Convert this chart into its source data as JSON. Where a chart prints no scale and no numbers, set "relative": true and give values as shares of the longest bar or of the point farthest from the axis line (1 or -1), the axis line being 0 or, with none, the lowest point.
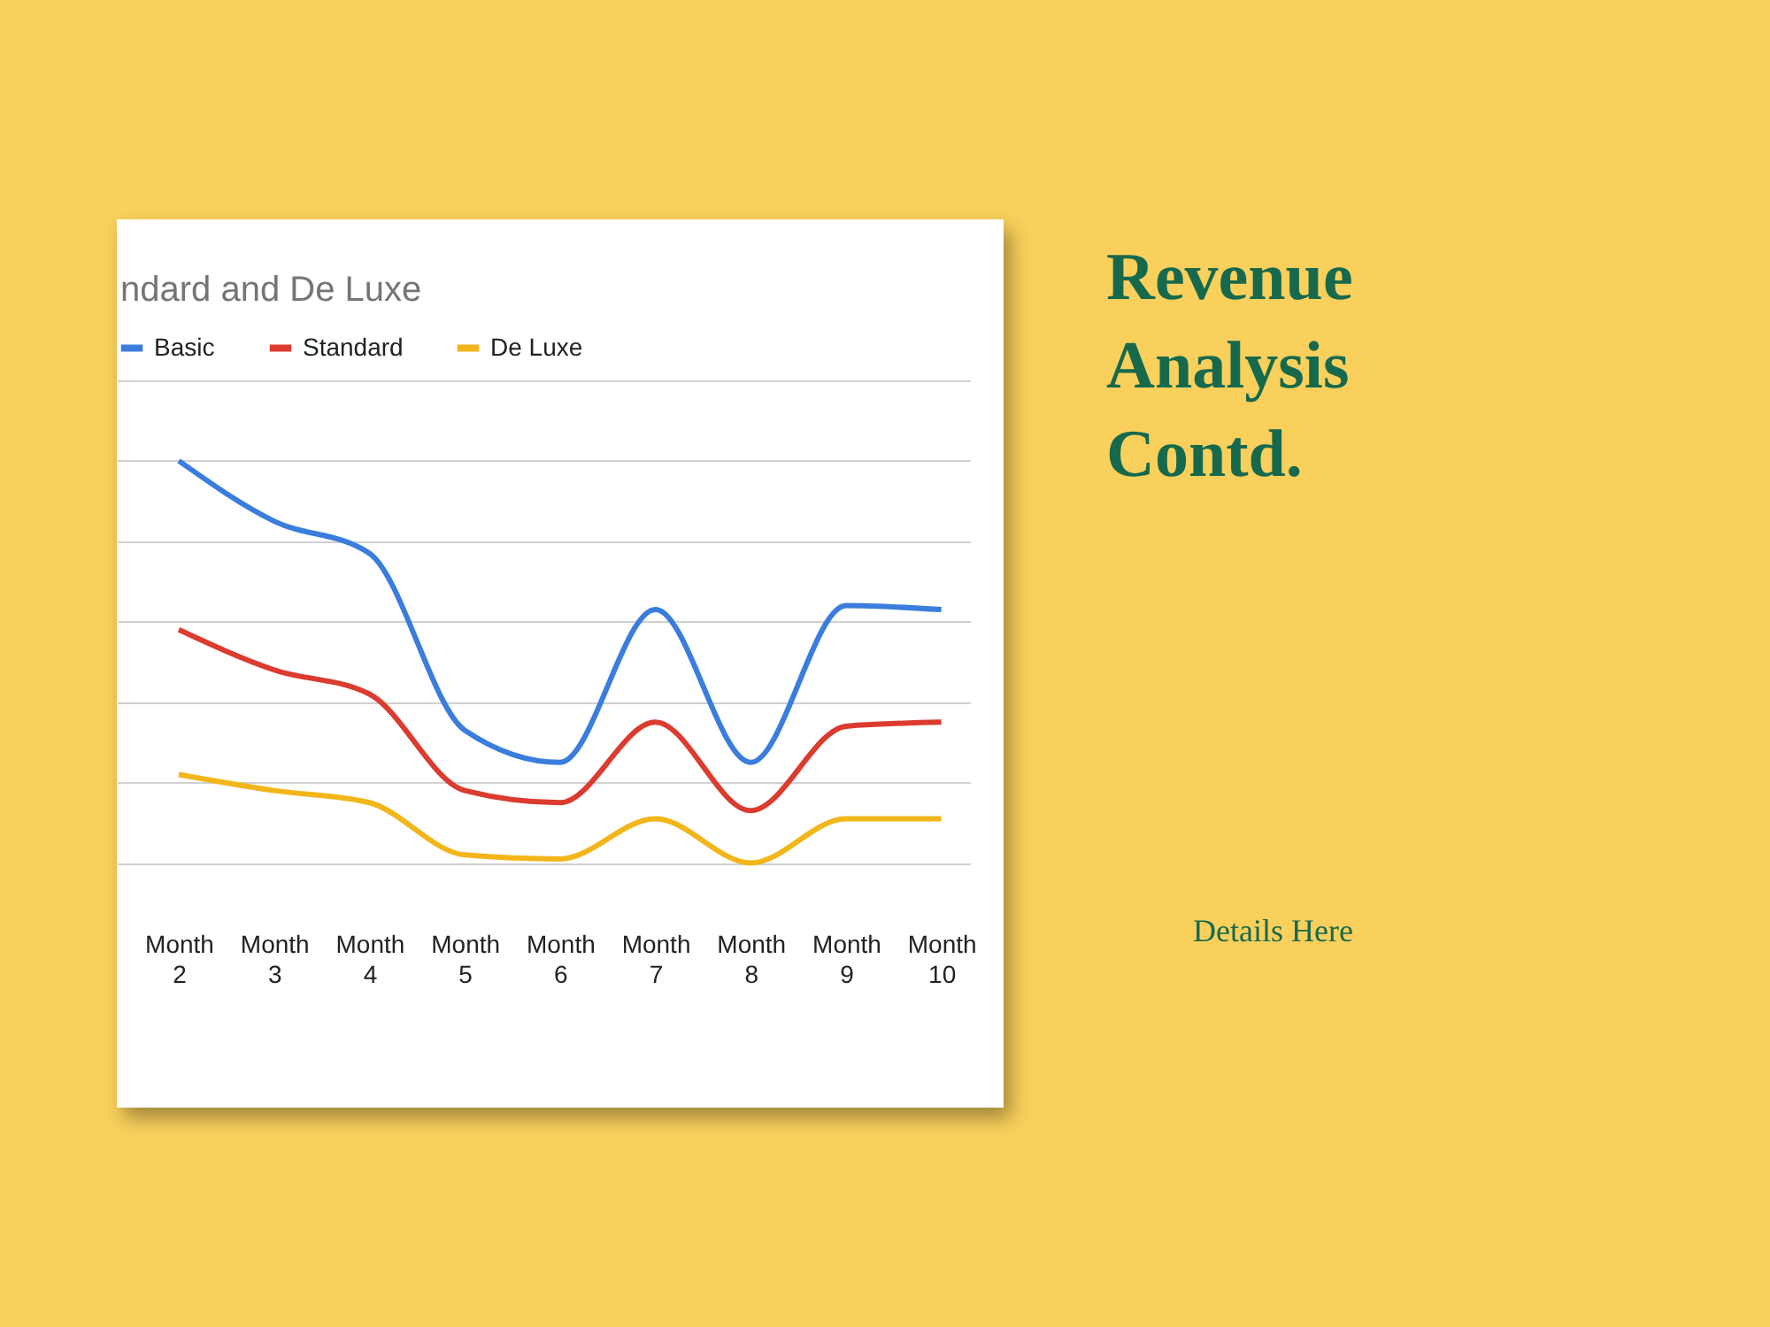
{
  "chart_data": {
    "type": "line",
    "title": "Revenue Analysis Contd.",
    "subtitle": "ndard and De Luxe",
    "annotations": [
      "Details Here"
    ],
    "categories": [
      "Month 2",
      "Month 3",
      "Month 4",
      "Month 5",
      "Month 6",
      "Month 7",
      "Month 8",
      "Month 9",
      "Month 10"
    ],
    "relative": true,
    "grid": "y",
    "legend": "top",
    "marker": "none",
    "series": [
      {
        "name": "Basic",
        "color": "#3b7ddd",
        "values": [
          1,
          0.85,
          0.77,
          0.33,
          0.25,
          0.63,
          0.25,
          0.64,
          0.63
        ]
      },
      {
        "name": "Standard",
        "color": "#dc3b2f",
        "values": [
          0.58,
          0.48,
          0.42,
          0.18,
          0.15,
          0.35,
          0.13,
          0.34,
          0.35
        ]
      },
      {
        "name": "De Luxe",
        "color": "#f2b61b",
        "values": [
          0.22,
          0.18,
          0.15,
          0.02,
          0.01,
          0.11,
          0,
          0.11,
          0.11
        ]
      }
    ]
  }
}
